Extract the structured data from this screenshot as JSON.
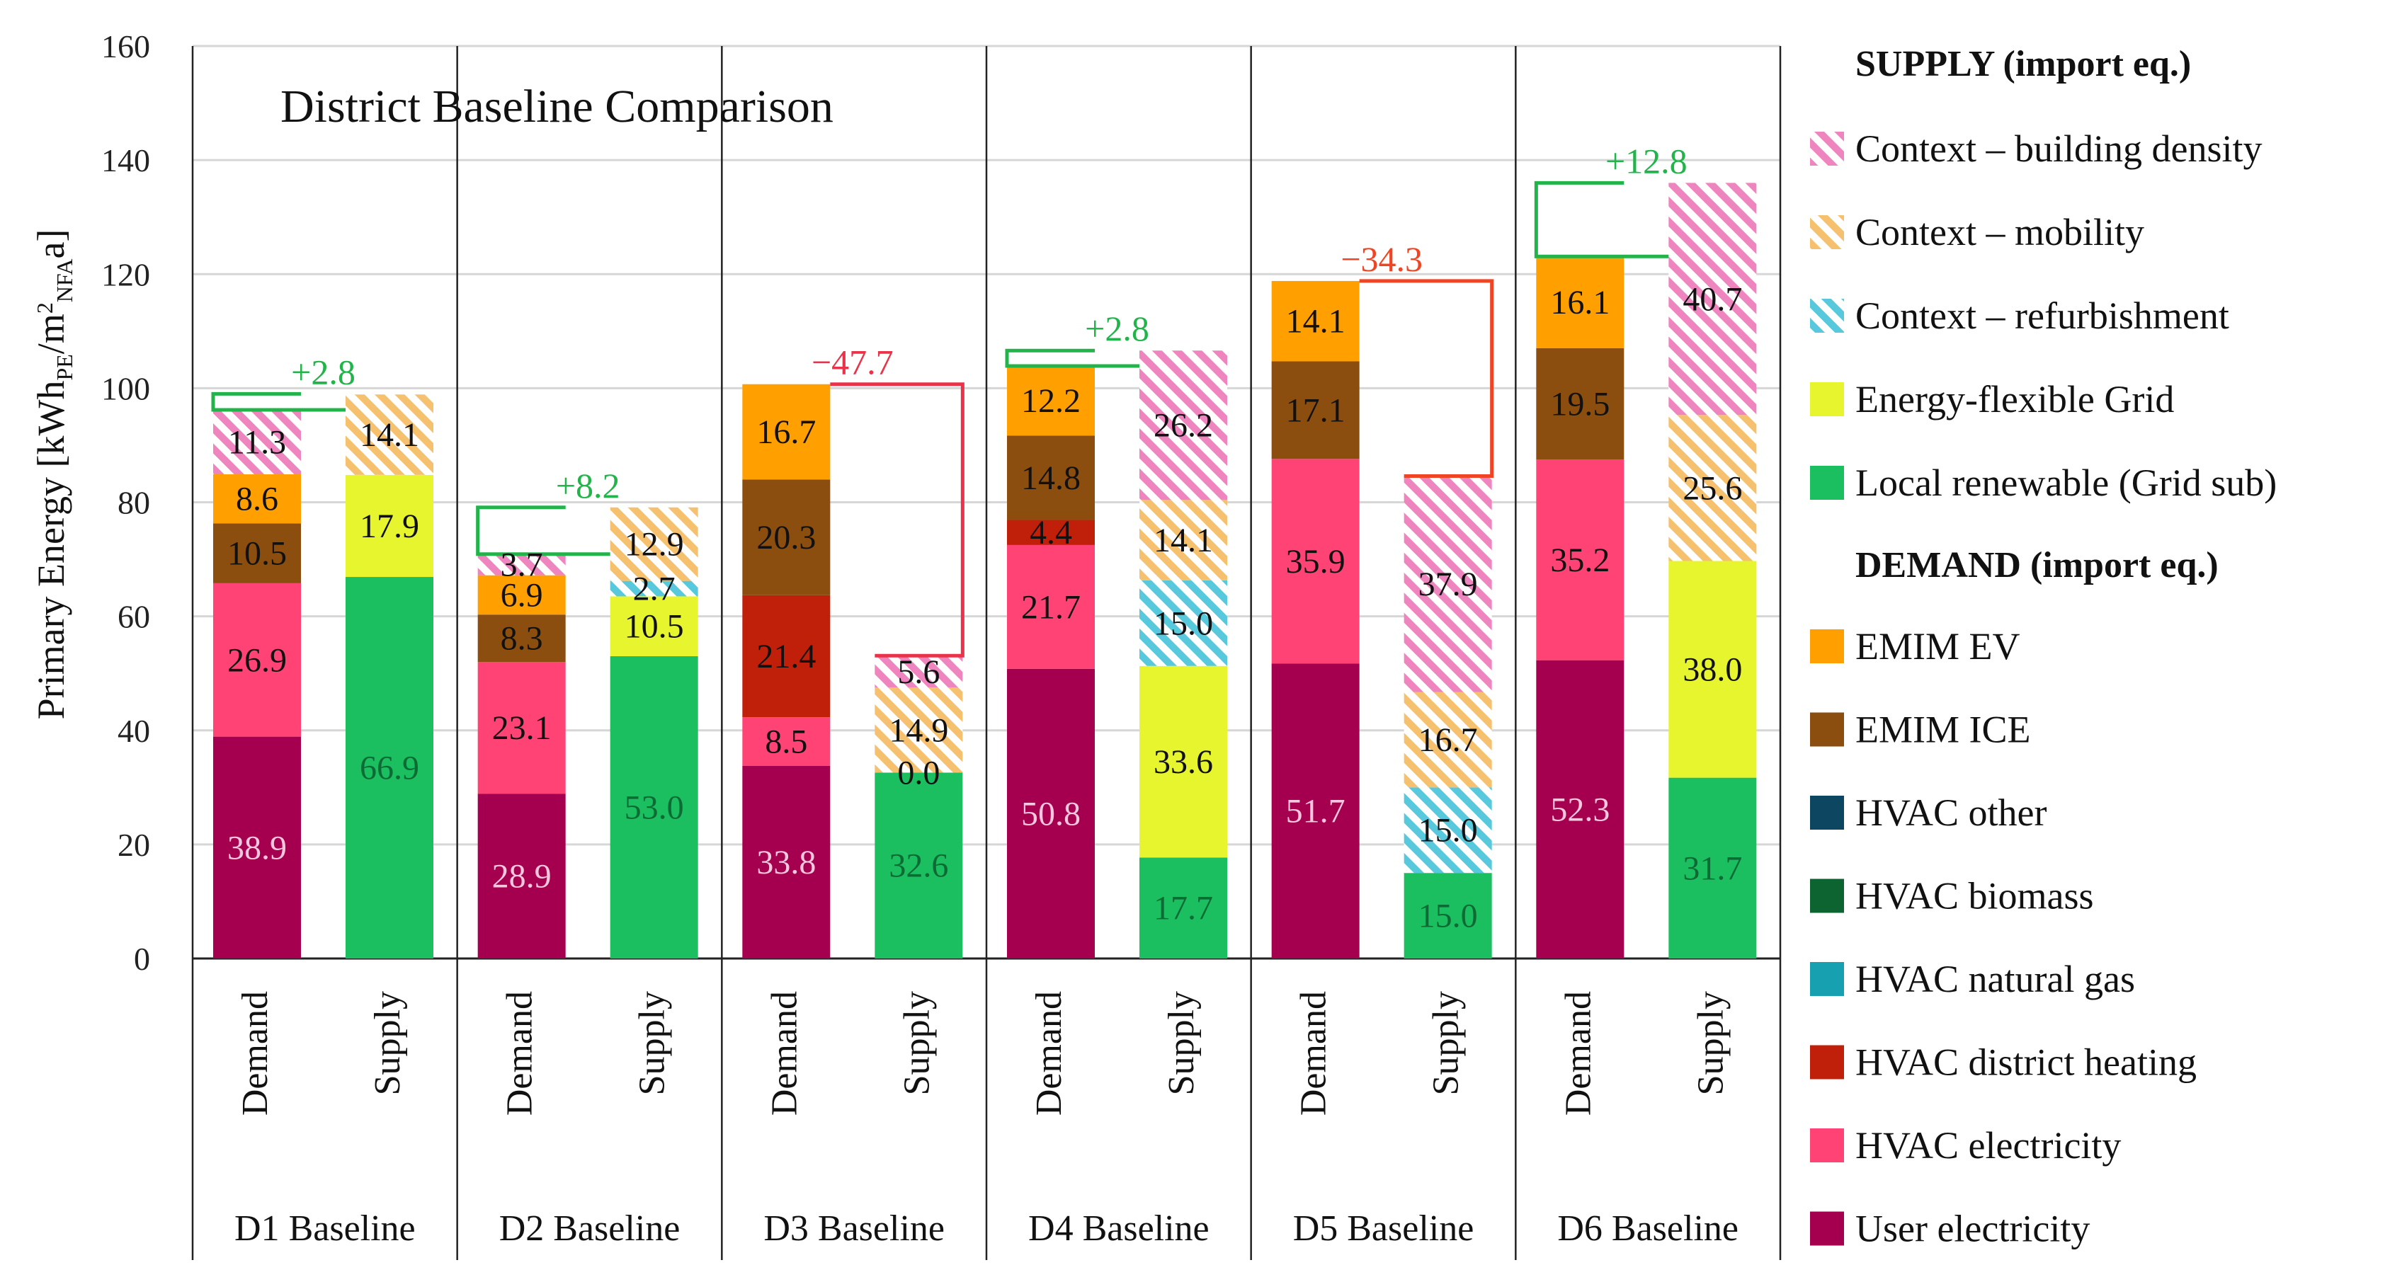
{
  "chart_data": {
    "type": "bar",
    "stacked": true,
    "title": "District Baseline Comparison",
    "ylabel": "Primary Energy [kWh_PE/m²_NFA a]",
    "ylim": [
      0,
      160
    ],
    "yticks": [
      0,
      20,
      40,
      60,
      80,
      100,
      120,
      140,
      160
    ],
    "grid": true,
    "legend_position": "right",
    "groups": [
      "D1 Baseline",
      "D2 Baseline",
      "D3 Baseline",
      "D4 Baseline",
      "D5 Baseline",
      "D6 Baseline"
    ],
    "columns": [
      "Demand",
      "Supply"
    ],
    "colors": {
      "user_electricity": "#A50050",
      "hvac_electricity": "#FF4375",
      "hvac_district_heating": "#C0200A",
      "hvac_natural_gas": "#17A0B0",
      "hvac_biomass": "#0E6430",
      "hvac_other": "#0C4660",
      "emim_ice": "#8B4E0E",
      "emim_ev": "#FF9F00",
      "local_renewable": "#1BBF5F",
      "energy_flexible_grid": "#E6F52E",
      "context_refurbishment": "#58C8DD",
      "context_mobility": "#F6C16F",
      "context_building_density": "#EF85BE",
      "positive_delta": "#22B44A",
      "negative_delta_d3": "#E8334A",
      "negative_delta_d5": "#F04525"
    },
    "legend": {
      "supply_header": "SUPPLY (import eq.)",
      "demand_header": "DEMAND (import eq.)",
      "supply_items": [
        {
          "label": "Context – building density",
          "key": "context_building_density",
          "hatched": true
        },
        {
          "label": "Context – mobility",
          "key": "context_mobility",
          "hatched": true
        },
        {
          "label": "Context – refurbishment",
          "key": "context_refurbishment",
          "hatched": true
        },
        {
          "label": "Energy-flexible Grid",
          "key": "energy_flexible_grid",
          "hatched": false
        },
        {
          "label": "Local renewable (Grid sub)",
          "key": "local_renewable",
          "hatched": false
        }
      ],
      "demand_items": [
        {
          "label": "EMIM EV",
          "key": "emim_ev"
        },
        {
          "label": "EMIM ICE",
          "key": "emim_ice"
        },
        {
          "label": "HVAC other",
          "key": "hvac_other"
        },
        {
          "label": "HVAC biomass",
          "key": "hvac_biomass"
        },
        {
          "label": "HVAC natural gas",
          "key": "hvac_natural_gas"
        },
        {
          "label": "HVAC district heating",
          "key": "hvac_district_heating"
        },
        {
          "label": "HVAC electricity",
          "key": "hvac_electricity"
        },
        {
          "label": "User electricity",
          "key": "user_electricity"
        }
      ]
    },
    "districts": [
      {
        "name": "D1 Baseline",
        "demand": [
          {
            "key": "user_electricity",
            "value": 38.9,
            "label": "38.9"
          },
          {
            "key": "hvac_electricity",
            "value": 26.9,
            "label": "26.9"
          },
          {
            "key": "emim_ice",
            "value": 10.5,
            "label": "10.5"
          },
          {
            "key": "emim_ev",
            "value": 8.6,
            "label": "8.6"
          },
          {
            "key": "context_building_density",
            "value": 11.3,
            "label": "11.3",
            "hatched": true
          }
        ],
        "supply": [
          {
            "key": "local_renewable",
            "value": 66.9,
            "label": "66.9"
          },
          {
            "key": "energy_flexible_grid",
            "value": 17.9,
            "label": "17.9"
          },
          {
            "key": "context_mobility",
            "value": 14.1,
            "label": "14.1",
            "hatched": true
          }
        ],
        "delta": {
          "label": "+2.8",
          "sign": "positive",
          "side": "demand",
          "from": 96.2,
          "to": 99.0
        }
      },
      {
        "name": "D2 Baseline",
        "demand": [
          {
            "key": "user_electricity",
            "value": 28.9,
            "label": "28.9"
          },
          {
            "key": "hvac_electricity",
            "value": 23.1,
            "label": "23.1"
          },
          {
            "key": "emim_ice",
            "value": 8.3,
            "label": "8.3"
          },
          {
            "key": "emim_ev",
            "value": 6.9,
            "label": "6.9"
          },
          {
            "key": "context_building_density",
            "value": 3.7,
            "label": "3.7",
            "hatched": true
          }
        ],
        "supply": [
          {
            "key": "local_renewable",
            "value": 53.0,
            "label": "53.0"
          },
          {
            "key": "energy_flexible_grid",
            "value": 10.5,
            "label": "10.5"
          },
          {
            "key": "context_refurbishment",
            "value": 2.7,
            "label": "2.7",
            "hatched": true
          },
          {
            "key": "context_mobility",
            "value": 12.9,
            "label": "12.9",
            "hatched": true
          }
        ],
        "delta": {
          "label": "+8.2",
          "sign": "positive",
          "side": "demand",
          "from": 70.9,
          "to": 79.1
        }
      },
      {
        "name": "D3 Baseline",
        "demand": [
          {
            "key": "user_electricity",
            "value": 33.8,
            "label": "33.8"
          },
          {
            "key": "hvac_electricity",
            "value": 8.5,
            "label": "8.5"
          },
          {
            "key": "hvac_district_heating",
            "value": 21.4,
            "label": "21.4"
          },
          {
            "key": "emim_ice",
            "value": 20.3,
            "label": "20.3"
          },
          {
            "key": "emim_ev",
            "value": 16.7,
            "label": "16.7"
          }
        ],
        "supply": [
          {
            "key": "local_renewable",
            "value": 32.6,
            "label": "32.6"
          },
          {
            "key": "energy_flexible_grid",
            "value": 0.0,
            "label": "0.0"
          },
          {
            "key": "context_mobility",
            "value": 14.9,
            "label": "14.9",
            "hatched": true
          },
          {
            "key": "context_building_density",
            "value": 5.6,
            "label": "5.6",
            "hatched": true
          }
        ],
        "delta": {
          "label": "−47.7",
          "sign": "negative",
          "side": "supply",
          "from": 53.1,
          "to": 100.7
        }
      },
      {
        "name": "D4 Baseline",
        "demand": [
          {
            "key": "user_electricity",
            "value": 50.8,
            "label": "50.8"
          },
          {
            "key": "hvac_electricity",
            "value": 21.7,
            "label": "21.7"
          },
          {
            "key": "hvac_district_heating",
            "value": 4.4,
            "label": "4.4"
          },
          {
            "key": "emim_ice",
            "value": 14.8,
            "label": "14.8"
          },
          {
            "key": "emim_ev",
            "value": 12.2,
            "label": "12.2"
          }
        ],
        "supply": [
          {
            "key": "local_renewable",
            "value": 17.7,
            "label": "17.7"
          },
          {
            "key": "energy_flexible_grid",
            "value": 33.6,
            "label": "33.6"
          },
          {
            "key": "context_refurbishment",
            "value": 15.0,
            "label": "15.0",
            "hatched": true
          },
          {
            "key": "context_mobility",
            "value": 14.1,
            "label": "14.1",
            "hatched": true
          },
          {
            "key": "context_building_density",
            "value": 26.2,
            "label": "26.2",
            "hatched": true
          }
        ],
        "delta": {
          "label": "+2.8",
          "sign": "positive",
          "side": "demand",
          "from": 103.9,
          "to": 106.6
        }
      },
      {
        "name": "D5 Baseline",
        "demand": [
          {
            "key": "user_electricity",
            "value": 51.7,
            "label": "51.7"
          },
          {
            "key": "hvac_electricity",
            "value": 35.9,
            "label": "35.9"
          },
          {
            "key": "emim_ice",
            "value": 17.1,
            "label": "17.1"
          },
          {
            "key": "emim_ev",
            "value": 14.1,
            "label": "14.1"
          }
        ],
        "supply": [
          {
            "key": "local_renewable",
            "value": 15.0,
            "label": "15.0"
          },
          {
            "key": "context_refurbishment",
            "value": 15.0,
            "label": "15.0",
            "hatched": true
          },
          {
            "key": "context_mobility",
            "value": 16.7,
            "label": "16.7",
            "hatched": true
          },
          {
            "key": "context_building_density",
            "value": 37.9,
            "label": "37.9",
            "hatched": true
          }
        ],
        "delta": {
          "label": "−34.3",
          "sign": "negative",
          "side": "supply",
          "from": 84.6,
          "to": 118.8
        }
      },
      {
        "name": "D6 Baseline",
        "demand": [
          {
            "key": "user_electricity",
            "value": 52.3,
            "label": "52.3"
          },
          {
            "key": "hvac_electricity",
            "value": 35.2,
            "label": "35.2"
          },
          {
            "key": "emim_ice",
            "value": 19.5,
            "label": "19.5"
          },
          {
            "key": "emim_ev",
            "value": 16.1,
            "label": "16.1"
          }
        ],
        "supply": [
          {
            "key": "local_renewable",
            "value": 31.7,
            "label": "31.7"
          },
          {
            "key": "energy_flexible_grid",
            "value": 38.0,
            "label": "38.0"
          },
          {
            "key": "context_mobility",
            "value": 25.6,
            "label": "25.6",
            "hatched": true
          },
          {
            "key": "context_building_density",
            "value": 40.7,
            "label": "40.7",
            "hatched": true
          }
        ],
        "delta": {
          "label": "+12.8",
          "sign": "positive",
          "side": "demand",
          "from": 123.1,
          "to": 136.0
        }
      }
    ]
  }
}
